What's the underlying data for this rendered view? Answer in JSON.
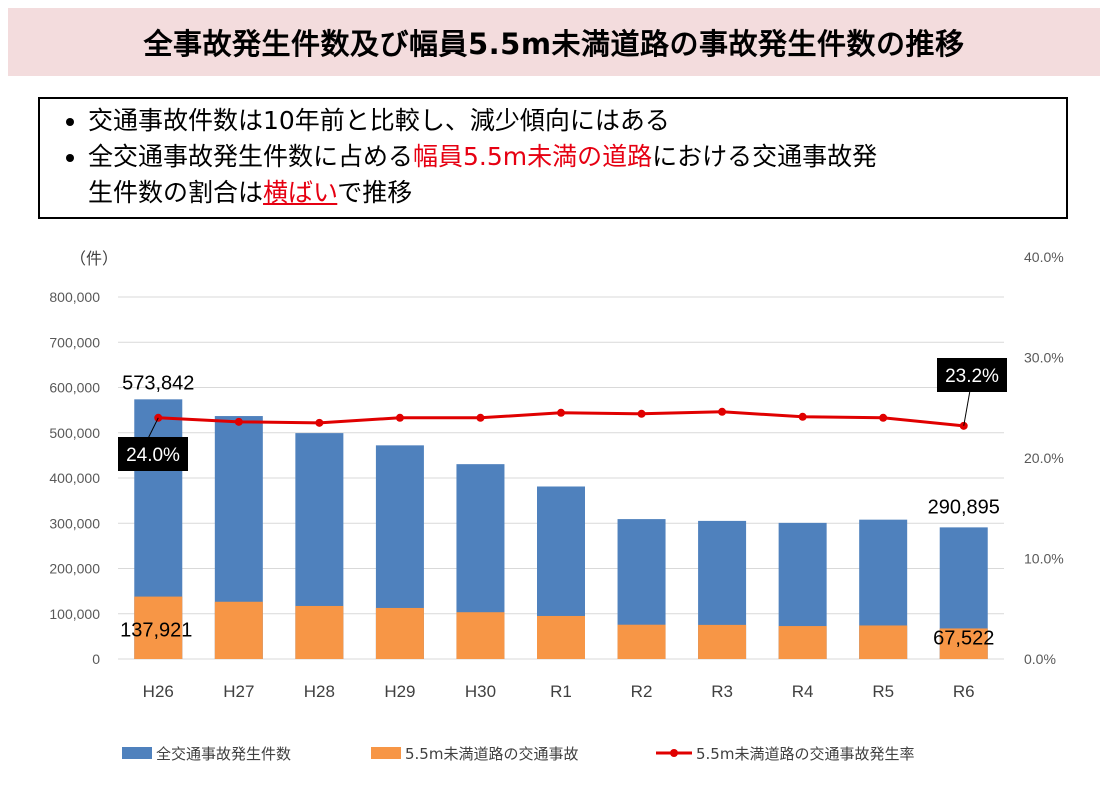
{
  "title": "全事故発生件数及び幅員5.5m未満道路の事故発生件数の推移",
  "notes": {
    "line1": "交通事故件数は10年前と比較し、減少傾向にはある",
    "line2_a": "全交通事故発生件数に占める",
    "line2_hl": "幅員5.5m未満の道路",
    "line2_b": "における交通事故発",
    "line3_a": "生件数の割合は",
    "line3_hl": "横ばい",
    "line3_b": "で推移"
  },
  "chart_data": {
    "type": "bar",
    "categories": [
      "H26",
      "H27",
      "H28",
      "H29",
      "H30",
      "R1",
      "R2",
      "R3",
      "R4",
      "R5",
      "R6"
    ],
    "series": [
      {
        "name": "全交通事故発生件数",
        "kind": "bar",
        "color": "#4f81bd",
        "values": [
          573842,
          536899,
          499201,
          472165,
          430601,
          381237,
          309178,
          305196,
          300839,
          307930,
          290895
        ]
      },
      {
        "name": "5.5m未満道路の交通事故",
        "kind": "bar",
        "color": "#f79646",
        "values": [
          137921,
          126500,
          117200,
          112800,
          103400,
          95100,
          75800,
          75400,
          72800,
          74100,
          67522
        ]
      },
      {
        "name": "5.5m未満道路の交通事故発生率",
        "kind": "line",
        "axis": "right",
        "color": "#e00000",
        "values": [
          24.0,
          23.6,
          23.5,
          24.0,
          24.0,
          24.5,
          24.4,
          24.6,
          24.1,
          24.0,
          23.2
        ]
      }
    ],
    "y_left": {
      "label": "（件）",
      "min": 0,
      "max": 800000,
      "ticks": [
        "0",
        "100,000",
        "200,000",
        "300,000",
        "400,000",
        "500,000",
        "600,000",
        "700,000",
        "800,000"
      ]
    },
    "y_right": {
      "min": 0,
      "max": 40,
      "ticks": [
        "0.0%",
        "10.0%",
        "20.0%",
        "30.0%",
        "40.0%"
      ]
    },
    "annotations": {
      "first_total": "573,842",
      "first_narrow": "137,921",
      "last_total": "290,895",
      "last_narrow": "67,522",
      "first_rate": "24.0%",
      "last_rate": "23.2%"
    },
    "legend": [
      "全交通事故発生件数",
      "5.5m未満道路の交通事故",
      "5.5m未満道路の交通事故発生率"
    ]
  }
}
